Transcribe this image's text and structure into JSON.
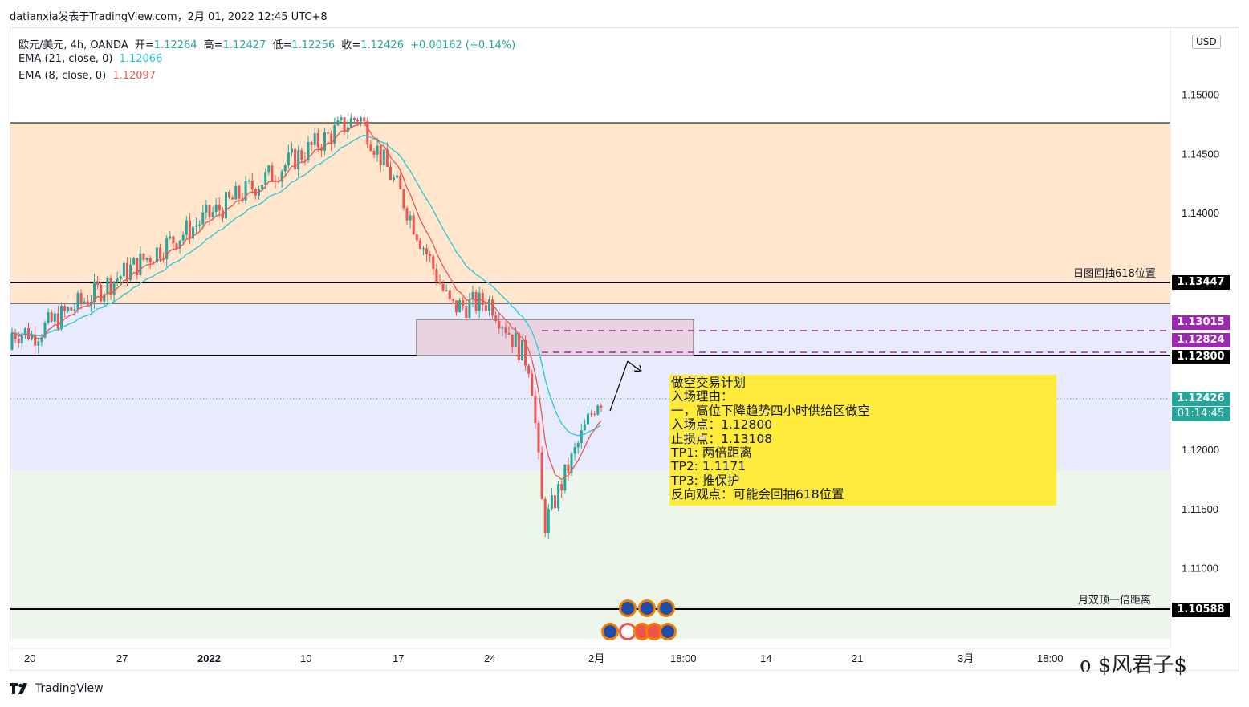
{
  "header": {
    "title": "datianxia发表于TradingView.com，2月 01, 2022 12:45 UTC+8"
  },
  "legend": {
    "symbol_line": "欧元/美元, 4h, OANDA",
    "open_label": "开=",
    "open": "1.12264",
    "high_label": "高=",
    "high": "1.12427",
    "low_label": "低=",
    "low": "1.12256",
    "close_label": "收=",
    "close": "1.12426",
    "change": "+0.00162 (+0.14%)",
    "ema21_label": "EMA (21, close, 0)",
    "ema21_value": "1.12066",
    "ema8_label": "EMA (8, close, 0)",
    "ema8_value": "1.12097"
  },
  "currency": "USD",
  "price_tags": {
    "t1": "1.13447",
    "t2": "1.13015",
    "t3": "1.12824",
    "t4": "1.12800",
    "last_price": "1.12426",
    "countdown": "01:14:45",
    "t5": "1.10588"
  },
  "labels": {
    "fib618": "日图回抽618位置",
    "double_top": "月双顶一倍距离"
  },
  "plan": {
    "title": "做空交易计划",
    "reason_title": "入场理由：",
    "reason": "一，高位下降趋势四小时供给区做空",
    "entry": "入场点：1.12800",
    "stop": "止损点：1.13108",
    "tp1": "TP1: 两倍距离",
    "tp2": "TP2: 1.1171",
    "tp3": "TP3: 推保护",
    "reverse": "反向观点：可能会回抽618位置"
  },
  "footer": {
    "brand": "TradingView"
  },
  "watermark": "ი $风君子$",
  "colors": {
    "up": "#26a69a",
    "down": "#ef5350",
    "ema21": "#26c6da",
    "ema8": "#ef5350",
    "supply": "#9c27b0",
    "black_line": "#000000",
    "zone_top": "#ffe6cc",
    "zone_mid": "#e8ebfb",
    "zone_bottom": "#edf6ea",
    "plan_box": "#ffeb3b"
  },
  "chart_data": {
    "type": "candlestick",
    "symbol": "EURUSD",
    "timeframe": "4h",
    "y_ticks": [
      "1.15000",
      "1.14500",
      "1.14000",
      "1.12000",
      "1.11500",
      "1.11000"
    ],
    "x_ticks": [
      "20",
      "27",
      "2022",
      "10",
      "17",
      "24",
      "2月",
      "18:00",
      "14",
      "21",
      "3月",
      "18:00"
    ],
    "ylim": [
      1.1032,
      1.1556
    ],
    "horizontal_lines": [
      1.15,
      1.13447,
      1.13261,
      1.128,
      1.10588
    ],
    "supply_zone": {
      "from": "2022-01-18",
      "to": "2022-02-03",
      "low": 1.128,
      "high": 1.13108
    },
    "dashed_levels": [
      1.13015,
      1.12824
    ],
    "key_points": [
      {
        "date": "2021-12-20",
        "price": 1.1295
      },
      {
        "date": "2021-12-30",
        "price": 1.137
      },
      {
        "date": "2022-01-14",
        "price": 1.1482
      },
      {
        "date": "2022-01-17",
        "price": 1.142
      },
      {
        "date": "2022-01-21",
        "price": 1.132
      },
      {
        "date": "2022-01-24",
        "price": 1.1325
      },
      {
        "date": "2022-01-27",
        "price": 1.127
      },
      {
        "date": "2022-01-28",
        "price": 1.1135
      },
      {
        "date": "2022-02-01",
        "price": 1.12426
      }
    ]
  }
}
